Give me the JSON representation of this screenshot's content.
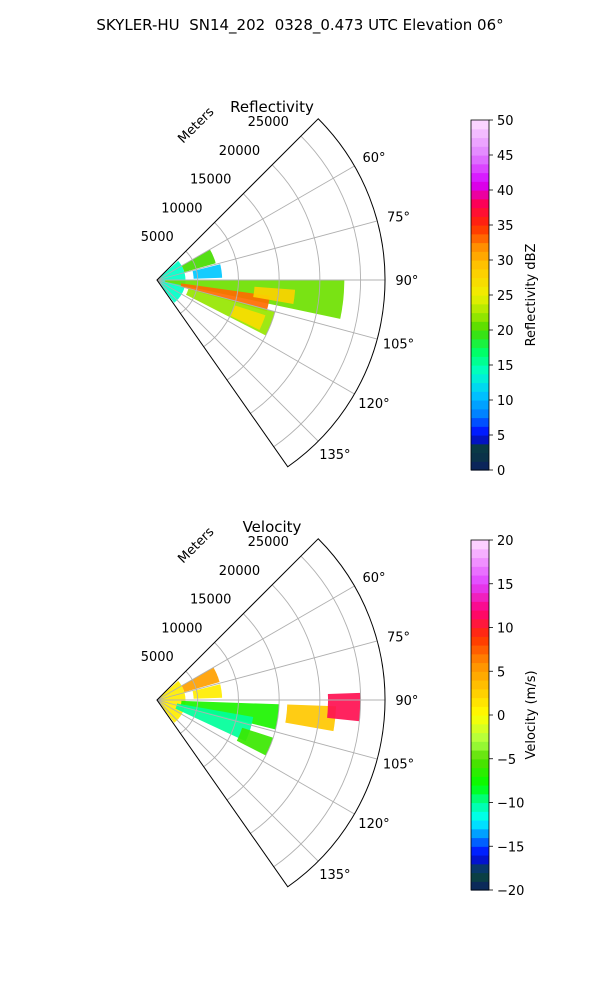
{
  "figure_title": "SKYLER-HU  SN14_202  0328_0.473 UTC Elevation 06°",
  "chart_data": [
    {
      "type": "heatmap",
      "subtype": "polar-sector",
      "title": "Reflectivity",
      "range_label": "Meters",
      "range_ticks": [
        5000,
        10000,
        15000,
        20000,
        25000
      ],
      "range_ticks_labels": [
        "5000",
        "10000",
        "15000",
        "20000",
        "25000"
      ],
      "range_max": 28000,
      "azimuth_range_deg": [
        45,
        145
      ],
      "azimuth_ticks_labels": [
        "60°",
        "75°",
        "90°",
        "105°",
        "120°",
        "135°"
      ],
      "grid": true,
      "colorbar": {
        "label": "Reflectivity dBZ",
        "min": 0,
        "max": 50,
        "ticks": [
          "0",
          "5",
          "10",
          "15",
          "20",
          "25",
          "30",
          "35",
          "40",
          "45",
          "50"
        ]
      },
      "echo_regions": [
        {
          "az": [
            48,
            143
          ],
          "r": [
            0,
            3500
          ],
          "value": 14
        },
        {
          "az": [
            60,
            74
          ],
          "r": [
            3500,
            7500
          ],
          "value": 20
        },
        {
          "az": [
            76,
            88
          ],
          "r": [
            4500,
            8000
          ],
          "value": 11
        },
        {
          "az": [
            90,
            102
          ],
          "r": [
            1000,
            23000
          ],
          "value": 21
        },
        {
          "az": [
            98,
            106
          ],
          "r": [
            3000,
            14000
          ],
          "value": 33
        },
        {
          "az": [
            105,
            117
          ],
          "r": [
            4000,
            15000
          ],
          "value": 22
        },
        {
          "az": [
            108,
            116
          ],
          "r": [
            10000,
            14000
          ],
          "value": 27
        },
        {
          "az": [
            94,
            100
          ],
          "r": [
            12000,
            17000
          ],
          "value": 28
        }
      ]
    },
    {
      "type": "heatmap",
      "subtype": "polar-sector",
      "title": "Velocity",
      "range_label": "Meters",
      "range_ticks": [
        5000,
        10000,
        15000,
        20000,
        25000
      ],
      "range_ticks_labels": [
        "5000",
        "10000",
        "15000",
        "20000",
        "25000"
      ],
      "range_max": 28000,
      "azimuth_range_deg": [
        45,
        145
      ],
      "azimuth_ticks_labels": [
        "60°",
        "75°",
        "90°",
        "105°",
        "120°",
        "135°"
      ],
      "grid": true,
      "colorbar": {
        "label": "Velocity (m/s)",
        "min": -20,
        "max": 20,
        "ticks": [
          "−20",
          "−15",
          "−10",
          "−5",
          "0",
          "5",
          "10",
          "15",
          "20"
        ]
      },
      "echo_regions": [
        {
          "az": [
            48,
            143
          ],
          "r": [
            0,
            3500
          ],
          "value": 1
        },
        {
          "az": [
            60,
            74
          ],
          "r": [
            3500,
            8000
          ],
          "value": 5
        },
        {
          "az": [
            76,
            88
          ],
          "r": [
            4500,
            8000
          ],
          "value": 1
        },
        {
          "az": [
            92,
            104
          ],
          "r": [
            3000,
            15000
          ],
          "value": -7
        },
        {
          "az": [
            100,
            115
          ],
          "r": [
            2500,
            12000
          ],
          "value": -10
        },
        {
          "az": [
            92,
            100
          ],
          "r": [
            16000,
            22000
          ],
          "value": 3
        },
        {
          "az": [
            88,
            96
          ],
          "r": [
            21000,
            25000
          ],
          "value": 11
        },
        {
          "az": [
            108,
            117
          ],
          "r": [
            11000,
            15000
          ],
          "value": -6
        }
      ]
    }
  ]
}
